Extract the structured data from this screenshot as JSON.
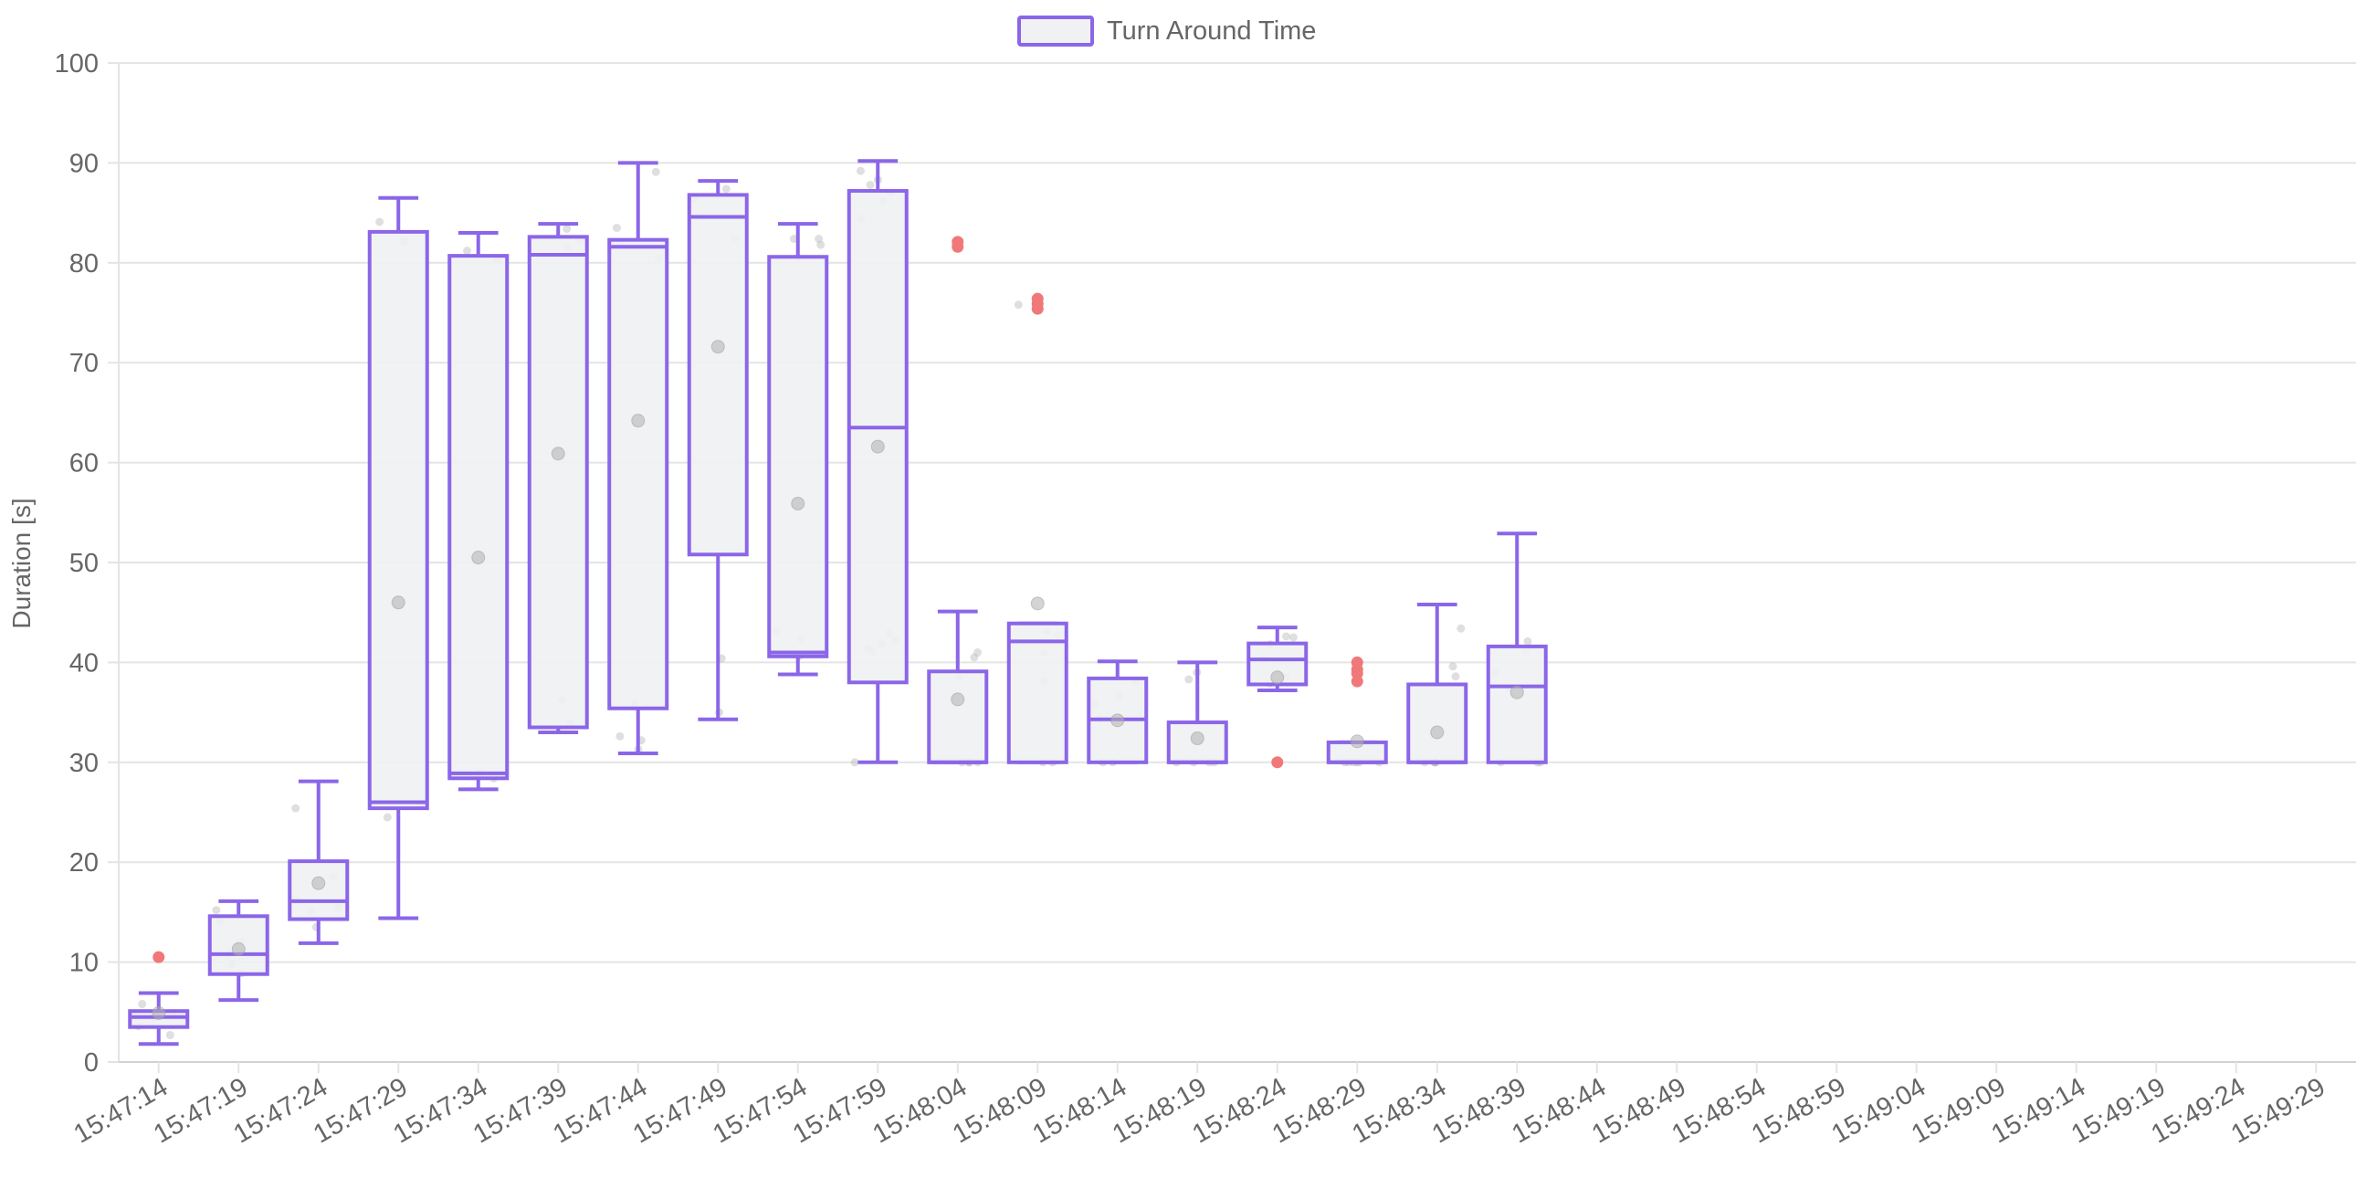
{
  "chart_data": {
    "type": "boxplot",
    "ylabel": "Duration [s]",
    "xlabel": "",
    "ylim": [
      0,
      100
    ],
    "yticks": [
      0,
      10,
      20,
      30,
      40,
      50,
      60,
      70,
      80,
      90,
      100
    ],
    "grid": true,
    "legend_position": "top-center",
    "categories": [
      "15:47:14",
      "15:47:19",
      "15:47:24",
      "15:47:29",
      "15:47:34",
      "15:47:39",
      "15:47:44",
      "15:47:49",
      "15:47:54",
      "15:47:59",
      "15:48:04",
      "15:48:09",
      "15:48:14",
      "15:48:19",
      "15:48:24",
      "15:48:29",
      "15:48:34",
      "15:48:39",
      "15:48:44",
      "15:48:49",
      "15:48:54",
      "15:48:59",
      "15:49:04",
      "15:49:09",
      "15:49:14",
      "15:49:19",
      "15:49:24",
      "15:49:29"
    ],
    "series": [
      {
        "name": "Turn Around Time",
        "border_color": "#8b66e8",
        "fill_color": "#f0f1f3",
        "outlier_color": "#f07878",
        "boxes": [
          {
            "category": "15:47:14",
            "min": 1.8,
            "q1": 3.5,
            "median": 4.5,
            "q3": 5.1,
            "max": 6.9,
            "mean": 4.9,
            "outliers": [
              10.5
            ]
          },
          {
            "category": "15:47:19",
            "min": 6.2,
            "q1": 8.8,
            "median": 10.8,
            "q3": 14.6,
            "max": 16.1,
            "mean": 11.3,
            "outliers": []
          },
          {
            "category": "15:47:24",
            "min": 11.9,
            "q1": 14.3,
            "median": 16.1,
            "q3": 20.1,
            "max": 28.1,
            "mean": 17.9,
            "outliers": []
          },
          {
            "category": "15:47:29",
            "min": 14.4,
            "q1": 25.4,
            "median": 26.0,
            "q3": 83.1,
            "max": 86.5,
            "mean": 46.0,
            "outliers": []
          },
          {
            "category": "15:47:34",
            "min": 27.3,
            "q1": 28.4,
            "median": 28.9,
            "q3": 80.7,
            "max": 83.0,
            "mean": 50.5,
            "outliers": []
          },
          {
            "category": "15:47:39",
            "min": 33.0,
            "q1": 33.5,
            "median": 80.8,
            "q3": 82.6,
            "max": 83.9,
            "mean": 60.9,
            "outliers": []
          },
          {
            "category": "15:47:44",
            "min": 30.9,
            "q1": 35.4,
            "median": 81.6,
            "q3": 82.3,
            "max": 90.0,
            "mean": 64.2,
            "outliers": []
          },
          {
            "category": "15:47:49",
            "min": 34.3,
            "q1": 50.8,
            "median": 84.6,
            "q3": 86.8,
            "max": 88.2,
            "mean": 71.6,
            "outliers": []
          },
          {
            "category": "15:47:54",
            "min": 38.8,
            "q1": 40.6,
            "median": 41.0,
            "q3": 80.6,
            "max": 83.9,
            "mean": 55.9,
            "outliers": []
          },
          {
            "category": "15:47:59",
            "min": 30.0,
            "q1": 38.0,
            "median": 63.5,
            "q3": 87.2,
            "max": 90.2,
            "mean": 61.6,
            "outliers": []
          },
          {
            "category": "15:48:04",
            "min": 30.0,
            "q1": 30.0,
            "median": 30.0,
            "q3": 39.1,
            "max": 45.1,
            "mean": 36.3,
            "outliers": [
              81.6,
              82.1
            ]
          },
          {
            "category": "15:48:09",
            "min": 30.0,
            "q1": 30.0,
            "median": 42.1,
            "q3": 43.9,
            "max": 43.9,
            "mean": 45.9,
            "outliers": [
              75.4,
              75.9,
              76.4
            ]
          },
          {
            "category": "15:48:14",
            "min": 30.0,
            "q1": 30.0,
            "median": 34.3,
            "q3": 38.4,
            "max": 40.1,
            "mean": 34.2,
            "outliers": []
          },
          {
            "category": "15:48:19",
            "min": 30.0,
            "q1": 30.0,
            "median": 30.0,
            "q3": 34.0,
            "max": 40.0,
            "mean": 32.4,
            "outliers": []
          },
          {
            "category": "15:48:24",
            "min": 37.2,
            "q1": 37.8,
            "median": 40.3,
            "q3": 41.9,
            "max": 43.5,
            "mean": 38.5,
            "outliers": [
              30.0
            ]
          },
          {
            "category": "15:48:29",
            "min": 30.0,
            "q1": 30.0,
            "median": 30.0,
            "q3": 32.0,
            "max": 32.0,
            "mean": 32.1,
            "outliers": [
              38.1,
              38.9,
              39.3,
              40.0
            ]
          },
          {
            "category": "15:48:34",
            "min": 30.0,
            "q1": 30.0,
            "median": 30.0,
            "q3": 37.8,
            "max": 45.8,
            "mean": 33.0,
            "outliers": []
          },
          {
            "category": "15:48:39",
            "min": 30.0,
            "q1": 30.0,
            "median": 37.6,
            "q3": 41.6,
            "max": 52.9,
            "mean": 37.0,
            "outliers": []
          }
        ],
        "points": [
          {
            "category": "15:47:14",
            "values": [
              2.7,
              3.6,
              4.4,
              4.9,
              5.8
            ]
          },
          {
            "category": "15:47:19",
            "values": [
              8.9,
              9.8,
              10.8,
              12.0,
              14.1,
              15.2
            ]
          },
          {
            "category": "15:47:24",
            "values": [
              13.5,
              15.1,
              15.5,
              16.2,
              18.5,
              25.4
            ]
          },
          {
            "category": "15:47:29",
            "values": [
              24.5,
              25.8,
              82.1,
              84.1
            ]
          },
          {
            "category": "15:47:34",
            "values": [
              28.4,
              29.0,
              80.3,
              81.2
            ]
          },
          {
            "category": "15:47:39",
            "values": [
              33.9,
              36.2,
              81.6,
              82.3,
              83.4
            ]
          },
          {
            "category": "15:47:44",
            "values": [
              31.3,
              32.2,
              32.6,
              35.9,
              80.4,
              81.8,
              83.5,
              89.1
            ]
          },
          {
            "category": "15:47:49",
            "values": [
              35.0,
              40.4,
              82.5,
              86.5,
              87.4
            ]
          },
          {
            "category": "15:47:54",
            "values": [
              40.6,
              42.4,
              43.2,
              80.5,
              81.8,
              82.4,
              82.4
            ]
          },
          {
            "category": "15:47:59",
            "values": [
              30.0,
              41.1,
              41.4,
              41.9,
              42.2,
              42.9,
              84.4,
              86.2,
              87.0,
              87.8,
              88.3,
              89.2
            ]
          },
          {
            "category": "15:48:04",
            "values": [
              30.0,
              30.0,
              30.0,
              30.0,
              38.5,
              40.5,
              41.0
            ]
          },
          {
            "category": "15:48:09",
            "values": [
              30.0,
              30.0,
              38.1,
              41.0,
              42.8,
              43.2,
              75.8,
              76.4
            ]
          },
          {
            "category": "15:48:14",
            "values": [
              30.0,
              30.0,
              34.3,
              35.8,
              36.6,
              38.0
            ]
          },
          {
            "category": "15:48:19",
            "values": [
              30.0,
              30.0,
              30.0,
              30.0,
              38.3,
              39.0
            ]
          },
          {
            "category": "15:48:24",
            "values": [
              37.9,
              38.5,
              40.3,
              41.8,
              42.6,
              42.5
            ]
          },
          {
            "category": "15:48:29",
            "values": [
              30.0,
              30.0,
              30.0,
              30.0,
              30.0,
              30.0
            ]
          },
          {
            "category": "15:48:34",
            "values": [
              30.0,
              30.0,
              30.0,
              30.0,
              30.0,
              38.6,
              39.6,
              43.4
            ]
          },
          {
            "category": "15:48:39",
            "values": [
              30.0,
              30.0,
              30.0,
              37.4,
              39.0,
              41.3,
              42.1
            ]
          }
        ]
      }
    ]
  }
}
